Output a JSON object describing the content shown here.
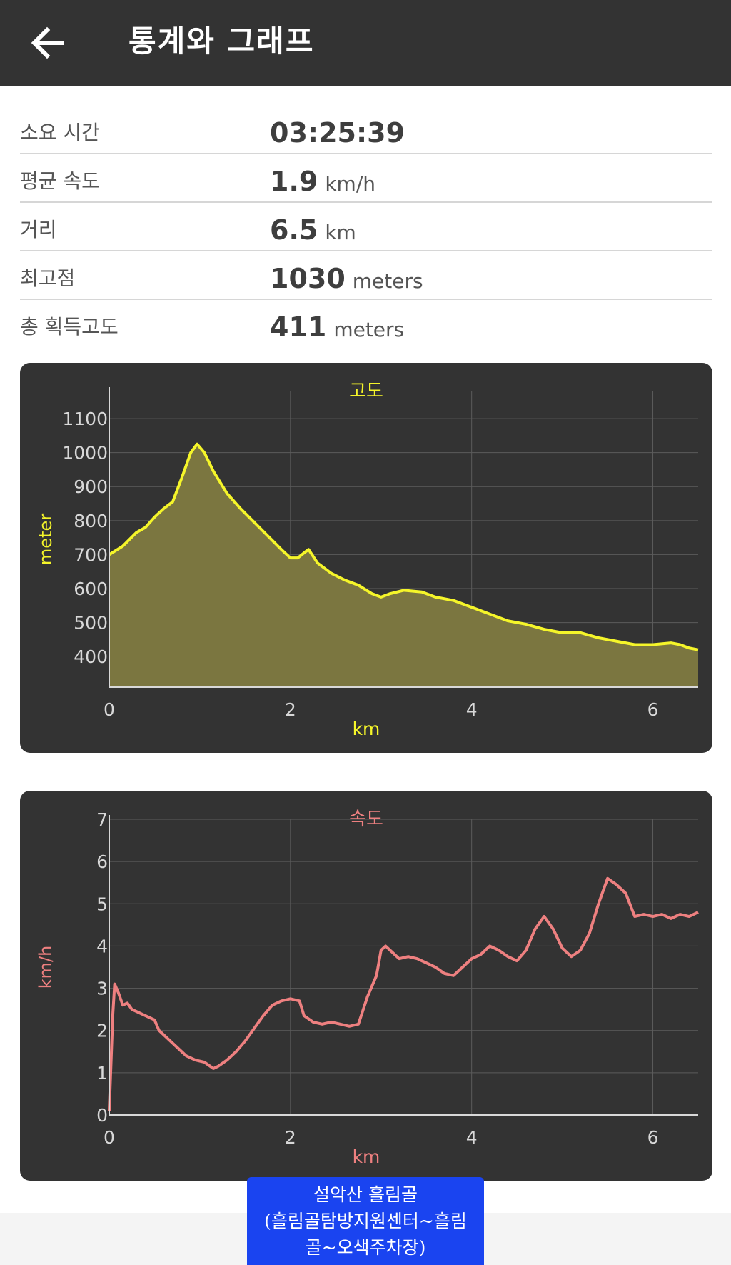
{
  "app_bar": {
    "title": "통계와 그래프",
    "back_icon": "arrow-left-icon"
  },
  "stats": [
    {
      "label": "소요 시간",
      "value": "03:25:39",
      "unit": ""
    },
    {
      "label": "평균 속도",
      "value": "1.9",
      "unit": "km/h"
    },
    {
      "label": "거리",
      "value": "6.5",
      "unit": "km"
    },
    {
      "label": "최고점",
      "value": "1030",
      "unit": "meters"
    },
    {
      "label": "총 획득고도",
      "value": "411",
      "unit": "meters"
    }
  ],
  "chart_data": [
    {
      "type": "area",
      "title": "고도",
      "xlabel": "km",
      "ylabel": "meter",
      "color": "#f5f52a",
      "fill": "#7b7640",
      "xlim": [
        0,
        6.5
      ],
      "ylim": [
        310,
        1180
      ],
      "xticks": [
        0,
        2,
        4,
        6
      ],
      "yticks": [
        400,
        500,
        600,
        700,
        800,
        900,
        1000,
        1100
      ],
      "grid": true,
      "x": [
        0,
        0.15,
        0.3,
        0.4,
        0.5,
        0.6,
        0.7,
        0.8,
        0.9,
        0.97,
        1.05,
        1.15,
        1.3,
        1.45,
        1.6,
        1.75,
        1.9,
        2.0,
        2.08,
        2.15,
        2.2,
        2.3,
        2.45,
        2.6,
        2.75,
        2.9,
        3.0,
        3.1,
        3.25,
        3.45,
        3.6,
        3.8,
        4.0,
        4.2,
        4.4,
        4.6,
        4.8,
        5.0,
        5.2,
        5.4,
        5.6,
        5.8,
        6.0,
        6.2,
        6.3,
        6.4,
        6.5
      ],
      "y": [
        700,
        725,
        765,
        780,
        810,
        835,
        855,
        925,
        1000,
        1025,
        1000,
        945,
        880,
        835,
        795,
        755,
        715,
        690,
        690,
        705,
        715,
        675,
        645,
        625,
        610,
        585,
        575,
        585,
        595,
        590,
        575,
        565,
        545,
        525,
        505,
        495,
        480,
        470,
        470,
        455,
        445,
        435,
        435,
        440,
        435,
        425,
        420
      ]
    },
    {
      "type": "line",
      "title": "속도",
      "xlabel": "km",
      "ylabel": "km/h",
      "color": "#ee8080",
      "xlim": [
        0,
        6.5
      ],
      "ylim": [
        0,
        7
      ],
      "xticks": [
        0,
        2,
        4,
        6
      ],
      "yticks": [
        0,
        1,
        2,
        3,
        4,
        5,
        6,
        7
      ],
      "grid": true,
      "x": [
        0,
        0.04,
        0.06,
        0.1,
        0.15,
        0.2,
        0.25,
        0.3,
        0.35,
        0.45,
        0.5,
        0.55,
        0.65,
        0.75,
        0.85,
        0.95,
        1.05,
        1.15,
        1.2,
        1.3,
        1.4,
        1.5,
        1.6,
        1.7,
        1.8,
        1.9,
        2.0,
        2.1,
        2.15,
        2.25,
        2.35,
        2.45,
        2.55,
        2.65,
        2.75,
        2.85,
        2.95,
        3.0,
        3.05,
        3.15,
        3.2,
        3.3,
        3.4,
        3.5,
        3.6,
        3.7,
        3.8,
        3.9,
        4.0,
        4.1,
        4.2,
        4.3,
        4.4,
        4.5,
        4.6,
        4.7,
        4.8,
        4.9,
        5.0,
        5.1,
        5.2,
        5.3,
        5.4,
        5.5,
        5.6,
        5.7,
        5.8,
        5.9,
        6.0,
        6.1,
        6.2,
        6.3,
        6.4,
        6.5
      ],
      "y": [
        0.1,
        2.4,
        3.1,
        2.9,
        2.6,
        2.65,
        2.5,
        2.45,
        2.4,
        2.3,
        2.25,
        2.0,
        1.8,
        1.6,
        1.4,
        1.3,
        1.25,
        1.1,
        1.15,
        1.3,
        1.5,
        1.75,
        2.05,
        2.35,
        2.6,
        2.7,
        2.75,
        2.7,
        2.35,
        2.2,
        2.15,
        2.2,
        2.15,
        2.1,
        2.15,
        2.8,
        3.3,
        3.9,
        4.0,
        3.8,
        3.7,
        3.75,
        3.7,
        3.6,
        3.5,
        3.35,
        3.3,
        3.5,
        3.7,
        3.8,
        4.0,
        3.9,
        3.75,
        3.65,
        3.9,
        4.4,
        4.7,
        4.4,
        3.95,
        3.75,
        3.9,
        4.3,
        5.0,
        5.6,
        5.45,
        5.25,
        4.7,
        4.75,
        4.7,
        4.75,
        4.65,
        4.75,
        4.7,
        4.8
      ]
    }
  ],
  "route_badge": {
    "line1": "설악산 흘림골",
    "line2": "(흘림골탐방지원센터~흘림",
    "line3": "골~오색주차장)"
  }
}
